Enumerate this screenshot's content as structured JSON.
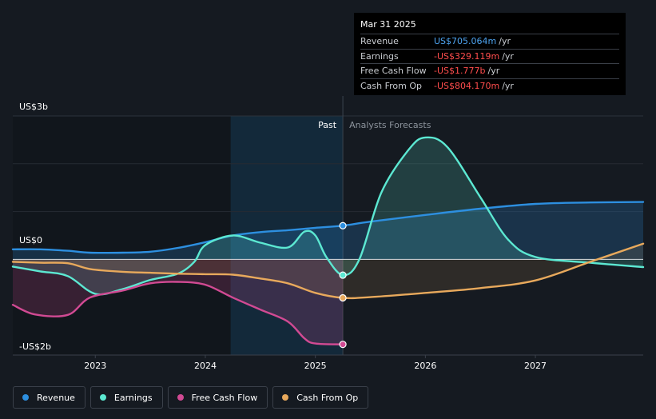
{
  "tooltip": {
    "date": "Mar 31 2025",
    "rows": [
      {
        "label": "Revenue",
        "value": "US$705.064m",
        "unit": "/yr",
        "color": "#4da3ef"
      },
      {
        "label": "Earnings",
        "value": "-US$329.119m",
        "unit": "/yr",
        "color": "#ff4d4d"
      },
      {
        "label": "Free Cash Flow",
        "value": "-US$1.777b",
        "unit": "/yr",
        "color": "#ff4d4d"
      },
      {
        "label": "Cash From Op",
        "value": "-US$804.170m",
        "unit": "/yr",
        "color": "#ff4d4d"
      }
    ]
  },
  "legend": [
    {
      "label": "Revenue",
      "color": "#2d8fe0"
    },
    {
      "label": "Earnings",
      "color": "#5ce8d2"
    },
    {
      "label": "Free Cash Flow",
      "color": "#d14a93"
    },
    {
      "label": "Cash From Op",
      "color": "#e8a95c"
    }
  ],
  "chart_data": {
    "type": "line",
    "y_tick_labels": [
      "US$3b",
      "US$0",
      "-US$2b"
    ],
    "ylim": [
      -2,
      3
    ],
    "xlim": [
      2022.25,
      2027.98
    ],
    "x_tick_labels": [
      "2023",
      "2024",
      "2025",
      "2026",
      "2027"
    ],
    "x_ticks": [
      2023,
      2024,
      2025,
      2026,
      2027
    ],
    "past_label": "Past",
    "forecast_label": "Analysts Forecasts",
    "divider_x": 2025.25,
    "past_shade_start": 2024.23,
    "series": [
      {
        "name": "Revenue",
        "color": "#2d8fe0",
        "points": [
          [
            2022.25,
            0.21
          ],
          [
            2022.5,
            0.21
          ],
          [
            2022.75,
            0.18
          ],
          [
            2022.95,
            0.14
          ],
          [
            2023.25,
            0.14
          ],
          [
            2023.5,
            0.16
          ],
          [
            2023.75,
            0.24
          ],
          [
            2024.0,
            0.36
          ],
          [
            2024.25,
            0.5
          ],
          [
            2024.5,
            0.57
          ],
          [
            2024.75,
            0.61
          ],
          [
            2025.0,
            0.66
          ],
          [
            2025.25,
            0.705
          ],
          [
            2025.5,
            0.79
          ],
          [
            2026.0,
            0.93
          ],
          [
            2026.5,
            1.06
          ],
          [
            2027.0,
            1.16
          ],
          [
            2027.5,
            1.19
          ],
          [
            2027.98,
            1.2
          ]
        ],
        "marker": [
          2025.25,
          0.705
        ]
      },
      {
        "name": "Earnings",
        "color": "#5ce8d2",
        "points": [
          [
            2022.25,
            -0.15
          ],
          [
            2022.5,
            -0.25
          ],
          [
            2022.75,
            -0.35
          ],
          [
            2023.0,
            -0.72
          ],
          [
            2023.25,
            -0.62
          ],
          [
            2023.5,
            -0.43
          ],
          [
            2023.75,
            -0.3
          ],
          [
            2023.9,
            -0.05
          ],
          [
            2024.0,
            0.3
          ],
          [
            2024.25,
            0.5
          ],
          [
            2024.5,
            0.35
          ],
          [
            2024.75,
            0.25
          ],
          [
            2024.9,
            0.58
          ],
          [
            2025.0,
            0.5
          ],
          [
            2025.1,
            0.05
          ],
          [
            2025.25,
            -0.329
          ],
          [
            2025.4,
            0.0
          ],
          [
            2025.6,
            1.4
          ],
          [
            2025.85,
            2.3
          ],
          [
            2026.0,
            2.55
          ],
          [
            2026.2,
            2.35
          ],
          [
            2026.5,
            1.3
          ],
          [
            2026.75,
            0.42
          ],
          [
            2027.0,
            0.05
          ],
          [
            2027.5,
            -0.07
          ],
          [
            2027.98,
            -0.16
          ]
        ],
        "marker": [
          2025.25,
          -0.329
        ]
      },
      {
        "name": "Free Cash Flow",
        "color": "#d14a93",
        "points": [
          [
            2022.25,
            -0.95
          ],
          [
            2022.45,
            -1.15
          ],
          [
            2022.75,
            -1.16
          ],
          [
            2022.95,
            -0.8
          ],
          [
            2023.25,
            -0.65
          ],
          [
            2023.5,
            -0.5
          ],
          [
            2023.75,
            -0.47
          ],
          [
            2024.0,
            -0.53
          ],
          [
            2024.25,
            -0.8
          ],
          [
            2024.5,
            -1.05
          ],
          [
            2024.75,
            -1.3
          ],
          [
            2024.9,
            -1.65
          ],
          [
            2025.0,
            -1.76
          ],
          [
            2025.25,
            -1.777
          ]
        ],
        "marker": [
          2025.25,
          -1.777
        ]
      },
      {
        "name": "Cash From Op",
        "color": "#e8a95c",
        "points": [
          [
            2022.25,
            -0.05
          ],
          [
            2022.5,
            -0.07
          ],
          [
            2022.75,
            -0.08
          ],
          [
            2022.95,
            -0.2
          ],
          [
            2023.25,
            -0.26
          ],
          [
            2023.5,
            -0.28
          ],
          [
            2023.75,
            -0.3
          ],
          [
            2024.0,
            -0.31
          ],
          [
            2024.25,
            -0.32
          ],
          [
            2024.5,
            -0.4
          ],
          [
            2024.75,
            -0.5
          ],
          [
            2025.0,
            -0.7
          ],
          [
            2025.25,
            -0.804
          ],
          [
            2025.5,
            -0.79
          ],
          [
            2026.0,
            -0.7
          ],
          [
            2026.5,
            -0.6
          ],
          [
            2027.0,
            -0.44
          ],
          [
            2027.5,
            -0.05
          ],
          [
            2027.98,
            0.33
          ]
        ],
        "marker": [
          2025.25,
          -0.804
        ]
      }
    ]
  }
}
